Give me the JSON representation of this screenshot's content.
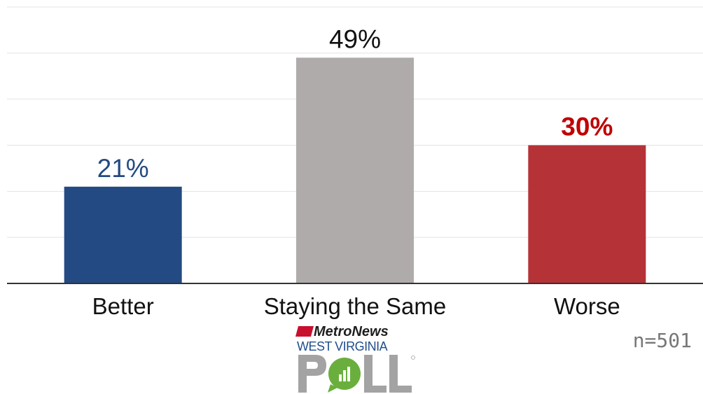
{
  "chart_data": {
    "type": "bar",
    "categories": [
      "Better",
      "Staying the Same",
      "Worse"
    ],
    "values": [
      21,
      49,
      30
    ],
    "data_labels": [
      "21%",
      "49%",
      "30%"
    ],
    "colors": [
      "#234a82",
      "#aeabaa",
      "#b53237"
    ],
    "label_colors": [
      "#234a82",
      "#111111",
      "#c00000"
    ],
    "label_bold": [
      false,
      false,
      true
    ],
    "ylim": [
      0,
      60
    ],
    "grid": true,
    "gridline_color": "#e3e3e3",
    "axis_color": "#333333",
    "title": "",
    "xlabel": "",
    "ylabel": ""
  },
  "sample_size": "n=501",
  "logo": {
    "brand_text": "MetroNews",
    "state_text": "WEST VIRGINIA",
    "poll_text": "POLL",
    "colors": {
      "brand_red": "#c8102e",
      "poll_gray": "#a3a3a3",
      "poll_green": "#6aaf3d"
    }
  }
}
